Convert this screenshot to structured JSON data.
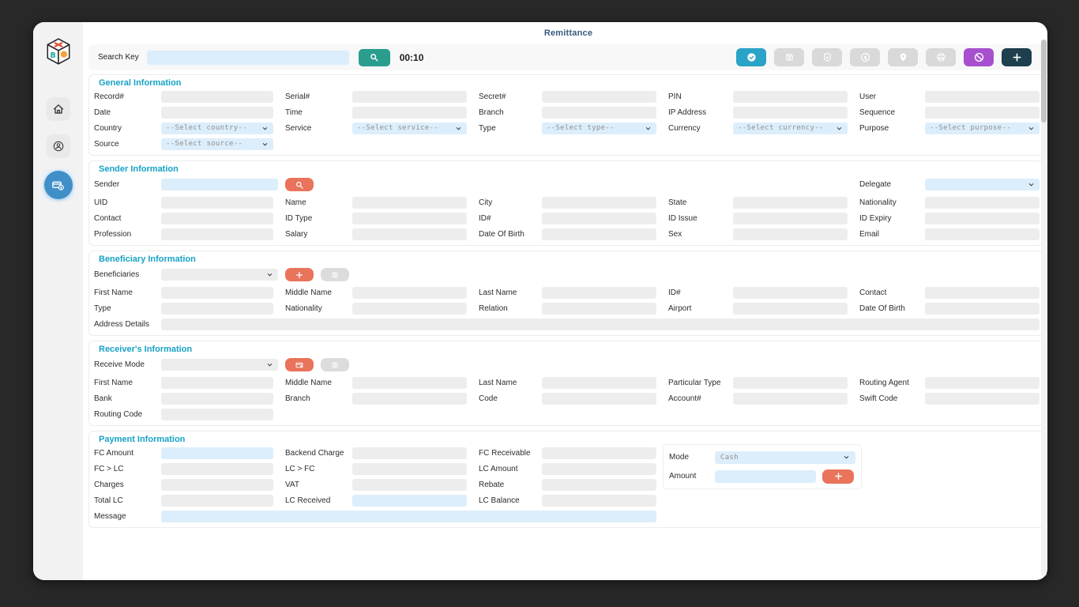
{
  "app": {
    "title": "Remittance"
  },
  "colors": {
    "background": "#282828",
    "accent_teal": "#2a9d8f",
    "accent_cyan": "#29a3c7",
    "accent_orange": "#e9745b",
    "accent_purple": "#a750cf",
    "accent_dark": "#1d3f4e",
    "section_header": "#17a2c6",
    "field_blue": "#dceefb",
    "field_gray": "#ededed",
    "sidebar_active": "#418fc8",
    "title_navy": "#3b5a7e"
  },
  "search": {
    "label": "Search Key",
    "value": "",
    "timer": "00:10"
  },
  "toolbar": {
    "buttons": [
      {
        "name": "approve",
        "icon": "check-circle-icon",
        "style": "teal",
        "enabled": true
      },
      {
        "name": "save",
        "icon": "save-icon",
        "style": "disabled",
        "enabled": false
      },
      {
        "name": "verify",
        "icon": "shield-check-icon",
        "style": "disabled",
        "enabled": false
      },
      {
        "name": "amount",
        "icon": "dollar-circle-icon",
        "style": "disabled",
        "enabled": false
      },
      {
        "name": "location",
        "icon": "location-pin-icon",
        "style": "disabled",
        "enabled": false
      },
      {
        "name": "print",
        "icon": "printer-icon",
        "style": "disabled",
        "enabled": false
      },
      {
        "name": "cancel",
        "icon": "ban-icon",
        "style": "purple",
        "enabled": true
      },
      {
        "name": "add-new",
        "icon": "plus-icon",
        "style": "dark",
        "enabled": true
      }
    ]
  },
  "sidebar": {
    "logo": "bx-cube-logo",
    "items": [
      {
        "name": "home",
        "icon": "home-icon",
        "active": false
      },
      {
        "name": "profile",
        "icon": "person-circle-icon",
        "active": false
      },
      {
        "name": "remittance",
        "icon": "money-transfer-icon",
        "active": true
      }
    ]
  },
  "sections": [
    {
      "key": "general",
      "title": "General Information",
      "rows": [
        {
          "cells": [
            {
              "label": "Record#",
              "col": 1,
              "type": "text",
              "variant": "gray"
            },
            {
              "label": "Serial#",
              "col": 2,
              "type": "text",
              "variant": "gray"
            },
            {
              "label": "Secret#",
              "col": 3,
              "type": "text",
              "variant": "gray"
            },
            {
              "label": "PIN",
              "col": 4,
              "type": "text",
              "variant": "gray"
            },
            {
              "label": "User",
              "col": 5,
              "type": "text",
              "variant": "gray"
            }
          ]
        },
        {
          "cells": [
            {
              "label": "Date",
              "col": 1,
              "type": "text",
              "variant": "gray"
            },
            {
              "label": "Time",
              "col": 2,
              "type": "text",
              "variant": "gray"
            },
            {
              "label": "Branch",
              "col": 3,
              "type": "text",
              "variant": "gray"
            },
            {
              "label": "IP Address",
              "col": 4,
              "type": "text",
              "variant": "gray"
            },
            {
              "label": "Sequence",
              "col": 5,
              "type": "text",
              "variant": "gray"
            }
          ]
        },
        {
          "cells": [
            {
              "label": "Country",
              "col": 1,
              "type": "select",
              "variant": "blue",
              "value": "--Select country--"
            },
            {
              "label": "Service",
              "col": 2,
              "type": "select",
              "variant": "blue",
              "value": "--Select service--"
            },
            {
              "label": "Type",
              "col": 3,
              "type": "select",
              "variant": "blue",
              "value": "--Select type--"
            },
            {
              "label": "Currency",
              "col": 4,
              "type": "select",
              "variant": "blue",
              "value": "--Select currency--"
            },
            {
              "label": "Purpose",
              "col": 5,
              "type": "select",
              "variant": "blue",
              "value": "--Select purpose--"
            }
          ]
        },
        {
          "cells": [
            {
              "label": "Source",
              "col": 1,
              "type": "select",
              "variant": "blue",
              "value": "--Select source--"
            }
          ]
        }
      ]
    },
    {
      "key": "sender",
      "title": "Sender Information",
      "rows": [
        {
          "tall": true,
          "cells": [
            {
              "label": "Sender",
              "col": 1,
              "type": "text",
              "variant": "blue",
              "fixed": true,
              "buttons": [
                {
                  "name": "sender-search",
                  "icon": "search-icon",
                  "style": "orange"
                }
              ]
            },
            {
              "label": "Delegate",
              "col": 5,
              "type": "select",
              "variant": "blue",
              "value": ""
            }
          ]
        },
        {
          "cells": [
            {
              "label": "UID",
              "col": 1,
              "type": "text",
              "variant": "gray"
            },
            {
              "label": "Name",
              "col": 2,
              "type": "text",
              "variant": "gray"
            },
            {
              "label": "City",
              "col": 3,
              "type": "text",
              "variant": "gray"
            },
            {
              "label": "State",
              "col": 4,
              "type": "text",
              "variant": "gray"
            },
            {
              "label": "Nationality",
              "col": 5,
              "type": "text",
              "variant": "gray"
            }
          ]
        },
        {
          "cells": [
            {
              "label": "Contact",
              "col": 1,
              "type": "text",
              "variant": "gray"
            },
            {
              "label": "ID Type",
              "col": 2,
              "type": "text",
              "variant": "gray"
            },
            {
              "label": "ID#",
              "col": 3,
              "type": "text",
              "variant": "gray"
            },
            {
              "label": "ID Issue",
              "col": 4,
              "type": "text",
              "variant": "gray"
            },
            {
              "label": "ID Expiry",
              "col": 5,
              "type": "text",
              "variant": "gray"
            }
          ]
        },
        {
          "cells": [
            {
              "label": "Profession",
              "col": 1,
              "type": "text",
              "variant": "gray"
            },
            {
              "label": "Salary",
              "col": 2,
              "type": "text",
              "variant": "gray"
            },
            {
              "label": "Date Of Birth",
              "col": 3,
              "type": "text",
              "variant": "gray"
            },
            {
              "label": "Sex",
              "col": 4,
              "type": "text",
              "variant": "gray"
            },
            {
              "label": "Email",
              "col": 5,
              "type": "text",
              "variant": "gray"
            }
          ]
        }
      ]
    },
    {
      "key": "beneficiary",
      "title": "Beneficiary Information",
      "rows": [
        {
          "tall": true,
          "cells": [
            {
              "label": "Beneficiaries",
              "col": 1,
              "type": "select",
              "variant": "gray",
              "value": "",
              "fixed": true,
              "buttons": [
                {
                  "name": "add-beneficiary",
                  "icon": "plus-icon",
                  "style": "orange"
                },
                {
                  "name": "save-beneficiary",
                  "icon": "save-icon",
                  "style": "disabled"
                }
              ]
            }
          ]
        },
        {
          "cells": [
            {
              "label": "First Name",
              "col": 1,
              "type": "text",
              "variant": "gray"
            },
            {
              "label": "Middle Name",
              "col": 2,
              "type": "text",
              "variant": "gray"
            },
            {
              "label": "Last Name",
              "col": 3,
              "type": "text",
              "variant": "gray"
            },
            {
              "label": "ID#",
              "col": 4,
              "type": "text",
              "variant": "gray"
            },
            {
              "label": "Contact",
              "col": 5,
              "type": "text",
              "variant": "gray"
            }
          ]
        },
        {
          "cells": [
            {
              "label": "Type",
              "col": 1,
              "type": "text",
              "variant": "gray"
            },
            {
              "label": "Nationality",
              "col": 2,
              "type": "text",
              "variant": "gray"
            },
            {
              "label": "Relation",
              "col": 3,
              "type": "text",
              "variant": "gray"
            },
            {
              "label": "Airport",
              "col": 4,
              "type": "text",
              "variant": "gray"
            },
            {
              "label": "Date Of Birth",
              "col": 5,
              "type": "text",
              "variant": "gray"
            }
          ]
        },
        {
          "cells": [
            {
              "label": "Address Details",
              "col": 1,
              "span": 5,
              "type": "text",
              "variant": "gray"
            }
          ]
        }
      ]
    },
    {
      "key": "receiver",
      "title": "Receiver's Information",
      "rows": [
        {
          "tall": true,
          "cells": [
            {
              "label": "Receive Mode",
              "col": 1,
              "type": "select",
              "variant": "gray",
              "value": "",
              "fixed": true,
              "buttons": [
                {
                  "name": "add-receive-account",
                  "icon": "card-plus-icon",
                  "style": "orange"
                },
                {
                  "name": "save-receive-account",
                  "icon": "save-icon",
                  "style": "disabled"
                }
              ]
            }
          ]
        },
        {
          "cells": [
            {
              "label": "First Name",
              "col": 1,
              "type": "text",
              "variant": "gray"
            },
            {
              "label": "Middle Name",
              "col": 2,
              "type": "text",
              "variant": "gray"
            },
            {
              "label": "Last Name",
              "col": 3,
              "type": "text",
              "variant": "gray"
            },
            {
              "label": "Particular Type",
              "col": 4,
              "type": "text",
              "variant": "gray"
            },
            {
              "label": "Routing Agent",
              "col": 5,
              "type": "text",
              "variant": "gray"
            }
          ]
        },
        {
          "cells": [
            {
              "label": "Bank",
              "col": 1,
              "type": "text",
              "variant": "gray"
            },
            {
              "label": "Branch",
              "col": 2,
              "type": "text",
              "variant": "gray"
            },
            {
              "label": "Code",
              "col": 3,
              "type": "text",
              "variant": "gray"
            },
            {
              "label": "Account#",
              "col": 4,
              "type": "text",
              "variant": "gray"
            },
            {
              "label": "Swift Code",
              "col": 5,
              "type": "text",
              "variant": "gray"
            }
          ]
        },
        {
          "cells": [
            {
              "label": "Routing Code",
              "col": 1,
              "type": "text",
              "variant": "gray"
            }
          ]
        }
      ]
    },
    {
      "key": "payment",
      "title": "Payment Information",
      "rows": [
        {
          "cells": [
            {
              "label": "FC Amount",
              "col": 1,
              "type": "text",
              "variant": "blue"
            },
            {
              "label": "Backend Charge",
              "col": 2,
              "type": "text",
              "variant": "gray"
            },
            {
              "label": "FC Receivable",
              "col": 3,
              "type": "text",
              "variant": "gray"
            }
          ]
        },
        {
          "cells": [
            {
              "label": "FC > LC",
              "col": 1,
              "type": "text",
              "variant": "gray"
            },
            {
              "label": "LC > FC",
              "col": 2,
              "type": "text",
              "variant": "gray"
            },
            {
              "label": "LC Amount",
              "col": 3,
              "type": "text",
              "variant": "gray"
            }
          ]
        },
        {
          "cells": [
            {
              "label": "Charges",
              "col": 1,
              "type": "text",
              "variant": "gray"
            },
            {
              "label": "VAT",
              "col": 2,
              "type": "text",
              "variant": "gray"
            },
            {
              "label": "Rebate",
              "col": 3,
              "type": "text",
              "variant": "gray"
            }
          ]
        },
        {
          "cells": [
            {
              "label": "Total LC",
              "col": 1,
              "type": "text",
              "variant": "gray"
            },
            {
              "label": "LC Received",
              "col": 2,
              "type": "text",
              "variant": "blue"
            },
            {
              "label": "LC Balance",
              "col": 3,
              "type": "text",
              "variant": "gray"
            }
          ]
        },
        {
          "cells": [
            {
              "label": "Message",
              "col": 1,
              "span": 3,
              "type": "text",
              "variant": "blue"
            }
          ]
        }
      ],
      "side_panel": {
        "rows": [
          {
            "label": "Mode",
            "type": "select",
            "variant": "blue",
            "value": "Cash"
          },
          {
            "label": "Amount",
            "type": "text",
            "variant": "blue",
            "buttons": [
              {
                "name": "add-payment",
                "icon": "plus-icon",
                "style": "orange"
              }
            ]
          }
        ]
      }
    }
  ]
}
